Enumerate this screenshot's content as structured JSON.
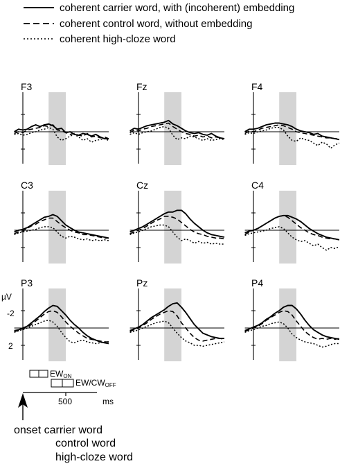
{
  "legend": [
    {
      "label": "coherent carrier word, with (incoherent) embedding",
      "style": "solid"
    },
    {
      "label": "coherent control word, without embedding",
      "style": "dashed"
    },
    {
      "label": "coherent high-cloze word",
      "style": "dotted"
    }
  ],
  "colors": {
    "line": "#000000",
    "shading": "#d4d4d4",
    "background": "#ffffff"
  },
  "axis": {
    "unit": "µV",
    "neg_tick": "-2",
    "pos_tick": "2",
    "time_tick": "500",
    "time_unit": "ms",
    "ew_on_main": "EW",
    "ew_on_sub": "ON",
    "ew_off_main": "EW/CW",
    "ew_off_sub": "OFF"
  },
  "onset": {
    "line1": "onset carrier word",
    "line2": "control word",
    "line3": "high-cloze word"
  },
  "chart_data": {
    "type": "line",
    "x_unit": "ms",
    "y_unit": "µV",
    "y_axis_inverted": true,
    "xlim": [
      -100,
      1000
    ],
    "ylim": [
      -3,
      3
    ],
    "shaded_window_ms": [
      300,
      500
    ],
    "x": [
      -100,
      -50,
      0,
      50,
      100,
      150,
      200,
      250,
      300,
      350,
      400,
      450,
      500,
      550,
      600,
      650,
      700,
      750,
      800,
      850,
      900,
      950,
      1000
    ],
    "series_styles": [
      "solid",
      "dashed",
      "dotted"
    ],
    "electrodes": [
      {
        "name": "F3",
        "solid": [
          0,
          -0.3,
          -0.2,
          -0.3,
          -0.6,
          -0.8,
          -0.6,
          -0.8,
          -0.9,
          -0.7,
          -0.3,
          -0.4,
          0.1,
          0,
          0.3,
          0.4,
          0.2,
          0.3,
          0.5,
          0.3,
          0.6,
          0.8,
          0.8
        ],
        "dashed": [
          0.2,
          0,
          0.1,
          -0.2,
          -0.3,
          -0.4,
          -0.5,
          -0.7,
          -0.6,
          -0.8,
          -0.2,
          -0.1,
          0.1,
          0.3,
          0.2,
          0.4,
          0.5,
          0.2,
          0.6,
          0.5,
          0.7,
          0.6,
          0.8
        ],
        "dotted": [
          0.3,
          0.2,
          0.4,
          0.3,
          0.1,
          0,
          -0.2,
          -0.3,
          -0.5,
          -0.3,
          0.6,
          1.0,
          0.8,
          0.5,
          0.3,
          0.6,
          1.0,
          0.8,
          1.2,
          1.0,
          0.9,
          0.8,
          1.0
        ]
      },
      {
        "name": "Fz",
        "solid": [
          -0.1,
          -0.4,
          -0.3,
          -0.5,
          -0.7,
          -0.8,
          -0.9,
          -1.0,
          -1.1,
          -1.3,
          -0.9,
          -0.7,
          -0.4,
          -0.1,
          0.1,
          0.2,
          0.1,
          0.3,
          0.4,
          0.2,
          0.5,
          0.7,
          0.8
        ],
        "dashed": [
          0.1,
          -0.2,
          -0.1,
          -0.3,
          -0.4,
          -0.6,
          -0.7,
          -0.8,
          -0.9,
          -1.0,
          -0.6,
          -0.3,
          0,
          0.2,
          0.3,
          0.5,
          0.4,
          0.6,
          0.5,
          0.7,
          0.6,
          0.7,
          0.8
        ],
        "dotted": [
          0.3,
          0.1,
          0.3,
          0.1,
          0,
          -0.1,
          -0.3,
          -0.5,
          -0.6,
          -0.4,
          0.4,
          0.9,
          0.7,
          0.8,
          0.5,
          0.6,
          0.8,
          1.0,
          0.8,
          1.0,
          0.9,
          0.8,
          0.9
        ]
      },
      {
        "name": "F4",
        "solid": [
          0,
          -0.3,
          -0.3,
          -0.4,
          -0.6,
          -0.8,
          -0.9,
          -1.0,
          -1.0,
          -0.9,
          -0.8,
          -0.6,
          -0.3,
          -0.1,
          0,
          0.1,
          0.3,
          0.2,
          0.5,
          0.6,
          0.7,
          0.8,
          0.9
        ],
        "dashed": [
          0.2,
          -0.1,
          0,
          -0.2,
          -0.4,
          -0.5,
          -0.6,
          -0.7,
          -0.8,
          -0.7,
          -0.5,
          -0.3,
          0,
          0.1,
          0.2,
          0.3,
          0.4,
          0.5,
          0.6,
          0.7,
          0.7,
          0.8,
          0.8
        ],
        "dotted": [
          0.3,
          0.1,
          0.2,
          0,
          -0.1,
          -0.2,
          -0.4,
          -0.5,
          -0.5,
          -0.2,
          0.5,
          1.0,
          1.1,
          0.7,
          0.9,
          1.0,
          1.3,
          1.6,
          1.2,
          1.4,
          1.9,
          1.5,
          1.3
        ]
      },
      {
        "name": "C3",
        "solid": [
          0.2,
          0,
          -0.1,
          -0.3,
          -0.6,
          -0.9,
          -1.2,
          -1.5,
          -1.6,
          -1.8,
          -1.6,
          -1.1,
          -0.6,
          -0.3,
          0,
          0.2,
          0.3,
          0.4,
          0.5,
          0.6,
          0.7,
          0.8,
          0.9
        ],
        "dashed": [
          0.4,
          0.2,
          0.1,
          -0.2,
          -0.5,
          -0.7,
          -1.0,
          -1.2,
          -1.4,
          -1.4,
          -1.0,
          -0.6,
          -0.3,
          0,
          0.2,
          0.3,
          0.5,
          0.5,
          0.6,
          0.7,
          0.8,
          0.9,
          0.9
        ],
        "dotted": [
          0.5,
          0.3,
          0.2,
          0.1,
          0,
          -0.1,
          -0.3,
          -0.4,
          -0.4,
          -0.3,
          0.2,
          0.7,
          0.9,
          0.7,
          0.8,
          1.0,
          1.1,
          1.0,
          1.2,
          1.1,
          1.2,
          1.1,
          1.2
        ]
      },
      {
        "name": "Cz",
        "solid": [
          0.2,
          0,
          -0.2,
          -0.4,
          -0.7,
          -1.0,
          -1.3,
          -1.6,
          -1.9,
          -2.1,
          -2.1,
          -2.3,
          -2.3,
          -1.9,
          -1.3,
          -0.8,
          -0.4,
          0,
          0.3,
          0.5,
          0.6,
          0.7,
          0.8
        ],
        "dashed": [
          0.4,
          0.2,
          0,
          -0.2,
          -0.5,
          -0.8,
          -1.1,
          -1.3,
          -1.6,
          -1.6,
          -1.5,
          -1.3,
          -0.9,
          -0.5,
          -0.1,
          0.2,
          0.4,
          0.5,
          0.7,
          0.8,
          0.9,
          0.9,
          1.0
        ],
        "dotted": [
          0.5,
          0.3,
          0.2,
          0,
          -0.2,
          -0.4,
          -0.5,
          -0.6,
          -0.6,
          -0.4,
          0.2,
          0.8,
          1.2,
          1.0,
          1.2,
          1.5,
          1.3,
          1.5,
          1.4,
          1.6,
          1.5,
          1.6,
          1.6
        ]
      },
      {
        "name": "C4",
        "solid": [
          0.3,
          0.1,
          0,
          -0.2,
          -0.5,
          -0.8,
          -1.1,
          -1.4,
          -1.6,
          -1.7,
          -1.7,
          -1.5,
          -1.3,
          -1.0,
          -0.6,
          -0.2,
          0.1,
          0.4,
          0.6,
          0.8,
          0.9,
          1.0,
          1.1
        ],
        "dashed": [
          0.5,
          0.2,
          0,
          -0.2,
          -0.5,
          -0.8,
          -1.1,
          -1.4,
          -1.6,
          -1.7,
          -1.5,
          -1.1,
          -0.7,
          -0.3,
          0,
          0.3,
          0.5,
          0.6,
          0.8,
          0.9,
          1.0,
          1.0,
          1.1
        ],
        "dotted": [
          0.6,
          0.4,
          0.3,
          0.2,
          0.1,
          0,
          -0.2,
          -0.3,
          -0.4,
          -0.2,
          0.3,
          0.8,
          1.1,
          1.3,
          1.2,
          1.5,
          1.8,
          1.6,
          2.0,
          2.3,
          2.0,
          2.1,
          1.9
        ]
      },
      {
        "name": "P3",
        "solid": [
          0.3,
          0.2,
          0,
          -0.2,
          -0.6,
          -1.0,
          -1.4,
          -1.9,
          -2.3,
          -2.6,
          -2.5,
          -2.0,
          -1.5,
          -0.9,
          -0.4,
          0,
          0.5,
          0.9,
          1.2,
          1.4,
          1.6,
          1.7,
          1.8
        ],
        "dashed": [
          0.4,
          0.3,
          0.1,
          -0.1,
          -0.4,
          -0.8,
          -1.2,
          -1.6,
          -1.9,
          -2.0,
          -1.8,
          -1.3,
          -0.7,
          -0.2,
          0.2,
          0.6,
          0.9,
          1.2,
          1.3,
          1.4,
          1.5,
          1.6,
          1.6
        ],
        "dotted": [
          0.5,
          0.3,
          0.2,
          0,
          -0.2,
          -0.4,
          -0.6,
          -0.8,
          -0.9,
          -0.7,
          -0.2,
          0.5,
          1.1,
          1.6,
          1.7,
          1.5,
          1.4,
          1.6,
          1.7,
          1.8,
          1.7,
          1.6,
          1.6
        ]
      },
      {
        "name": "Pz",
        "solid": [
          0.3,
          0.1,
          -0.1,
          -0.4,
          -0.8,
          -1.2,
          -1.5,
          -1.8,
          -2.1,
          -2.5,
          -2.8,
          -2.9,
          -2.4,
          -1.8,
          -1.1,
          -0.4,
          0.1,
          0.6,
          0.8,
          1.0,
          1.1,
          1.2,
          1.2
        ],
        "dashed": [
          0.4,
          0.2,
          0,
          -0.3,
          -0.6,
          -1.0,
          -1.3,
          -1.6,
          -1.8,
          -2.0,
          -1.9,
          -1.4,
          -0.6,
          0,
          0.6,
          1.1,
          1.4,
          1.5,
          1.4,
          1.3,
          1.2,
          1.2,
          1.3
        ],
        "dotted": [
          0.5,
          0.4,
          0.2,
          0,
          -0.2,
          -0.4,
          -0.6,
          -0.7,
          -0.8,
          -0.6,
          0,
          0.6,
          1.1,
          1.5,
          1.7,
          2.0,
          2.0,
          2.1,
          2.0,
          1.9,
          1.8,
          1.7,
          1.6
        ]
      },
      {
        "name": "P4",
        "solid": [
          0.3,
          0.1,
          -0.1,
          -0.3,
          -0.6,
          -1.0,
          -1.3,
          -1.7,
          -2.0,
          -2.4,
          -2.6,
          -2.6,
          -2.2,
          -1.6,
          -0.9,
          -0.3,
          0.2,
          0.5,
          0.8,
          1.0,
          1.1,
          1.2,
          1.3
        ],
        "dashed": [
          0.4,
          0.2,
          0,
          -0.2,
          -0.5,
          -0.9,
          -1.2,
          -1.5,
          -1.8,
          -2.0,
          -1.9,
          -1.5,
          -0.8,
          -0.2,
          0.4,
          0.8,
          1.1,
          1.3,
          1.2,
          1.3,
          1.2,
          1.3,
          1.2
        ],
        "dotted": [
          0.5,
          0.3,
          0.2,
          0,
          -0.2,
          -0.3,
          -0.5,
          -0.6,
          -0.7,
          -0.5,
          0,
          0.7,
          1.1,
          1.4,
          1.6,
          1.7,
          1.8,
          2.0,
          2.2,
          2.1,
          1.9,
          1.8,
          1.8
        ]
      }
    ],
    "time_bars": [
      {
        "label": "EW_ON",
        "range_ms": [
          80,
          280
        ],
        "ticks_ms": [
          180
        ]
      },
      {
        "label": "EW/CW_OFF",
        "range_ms": [
          330,
          600
        ],
        "ticks_ms": [
          460
        ]
      }
    ]
  }
}
